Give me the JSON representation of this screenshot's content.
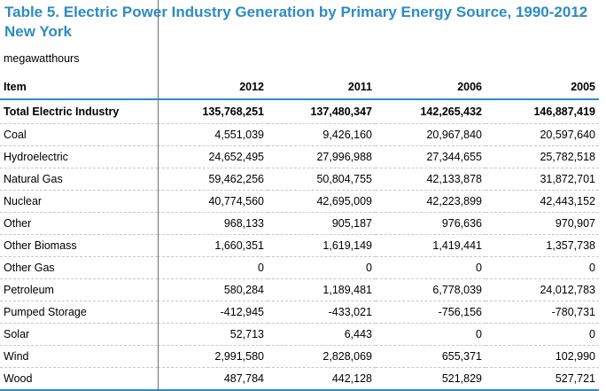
{
  "table": {
    "title_line1": "Table 5. Electric Power Industry Generation by Primary Energy Source, 1990-2012",
    "title_line2": "New York",
    "units": "megawatthours",
    "headers": [
      "Item",
      "2012",
      "2011",
      "2006",
      "2005"
    ],
    "total": {
      "label": "Total Electric Industry",
      "values": [
        "135,768,251",
        "137,480,347",
        "142,265,432",
        "146,887,419"
      ]
    },
    "rows": [
      {
        "label": "Coal",
        "values": [
          "4,551,039",
          "9,426,160",
          "20,967,840",
          "20,597,640"
        ]
      },
      {
        "label": "Hydroelectric",
        "values": [
          "24,652,495",
          "27,996,988",
          "27,344,655",
          "25,782,518"
        ]
      },
      {
        "label": "Natural Gas",
        "values": [
          "59,462,256",
          "50,804,755",
          "42,133,878",
          "31,872,701"
        ]
      },
      {
        "label": "Nuclear",
        "values": [
          "40,774,560",
          "42,695,009",
          "42,223,899",
          "42,443,152"
        ]
      },
      {
        "label": "Other",
        "values": [
          "968,133",
          "905,187",
          "976,636",
          "970,907"
        ]
      },
      {
        "label": "Other Biomass",
        "values": [
          "1,660,351",
          "1,619,149",
          "1,419,441",
          "1,357,738"
        ]
      },
      {
        "label": "Other Gas",
        "values": [
          "0",
          "0",
          "0",
          "0"
        ]
      },
      {
        "label": "Petroleum",
        "values": [
          "580,284",
          "1,189,481",
          "6,778,039",
          "24,012,783"
        ]
      },
      {
        "label": "Pumped Storage",
        "values": [
          "-412,945",
          "-433,021",
          "-756,156",
          "-780,731"
        ]
      },
      {
        "label": "Solar",
        "values": [
          "52,713",
          "6,443",
          "0",
          "0"
        ]
      },
      {
        "label": "Wind",
        "values": [
          "2,991,580",
          "2,828,069",
          "655,371",
          "102,990"
        ]
      },
      {
        "label": "Wood",
        "values": [
          "487,784",
          "442,128",
          "521,829",
          "527,721"
        ]
      }
    ]
  }
}
